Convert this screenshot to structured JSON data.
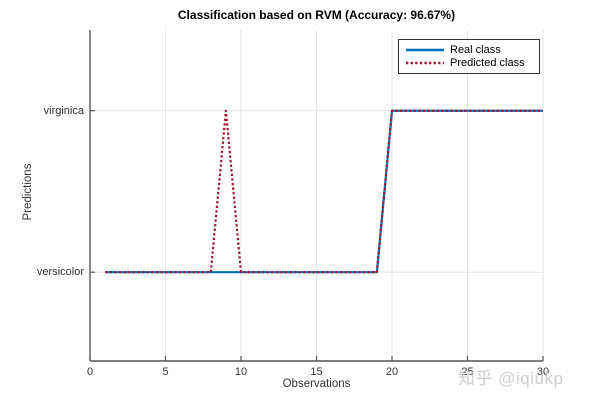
{
  "chart_data": {
    "type": "line",
    "title": "Classification based on RVM (Accuracy: 96.67%)",
    "xlabel": "Observations",
    "ylabel": "Predictions",
    "xlim": [
      0,
      30
    ],
    "ylim": [
      0.45,
      2.5
    ],
    "xticks": [
      0,
      5,
      10,
      15,
      20,
      25,
      30
    ],
    "yticks": [
      {
        "value": 1,
        "label": "versicolor"
      },
      {
        "value": 2,
        "label": "virginica"
      }
    ],
    "grid": true,
    "legend": {
      "position": "northeast",
      "entries": [
        {
          "label": "Real class",
          "color": "#0072BD",
          "line_style": "solid"
        },
        {
          "label": "Predicted class",
          "color": "#A2142F",
          "line_style": "dotted"
        }
      ]
    },
    "x": [
      1,
      2,
      3,
      4,
      5,
      6,
      7,
      8,
      9,
      10,
      11,
      12,
      13,
      14,
      15,
      16,
      17,
      18,
      19,
      20,
      21,
      22,
      23,
      24,
      25,
      26,
      27,
      28,
      29,
      30
    ],
    "series": [
      {
        "name": "Real class",
        "color": "#0072BD",
        "line_style": "solid",
        "values": [
          1,
          1,
          1,
          1,
          1,
          1,
          1,
          1,
          1,
          1,
          1,
          1,
          1,
          1,
          1,
          1,
          1,
          1,
          1,
          2,
          2,
          2,
          2,
          2,
          2,
          2,
          2,
          2,
          2,
          2
        ]
      },
      {
        "name": "Predicted class",
        "color": "#A2142F",
        "line_style": "dotted",
        "values": [
          1,
          1,
          1,
          1,
          1,
          1,
          1,
          1,
          2,
          1,
          1,
          1,
          1,
          1,
          1,
          1,
          1,
          1,
          1,
          2,
          2,
          2,
          2,
          2,
          2,
          2,
          2,
          2,
          2,
          2
        ]
      }
    ]
  },
  "colors": {
    "axis": "#555555",
    "grid": "#e6e6e6",
    "tick_label": "#333333"
  },
  "watermark": {
    "text": "知乎 @iqiukp"
  }
}
